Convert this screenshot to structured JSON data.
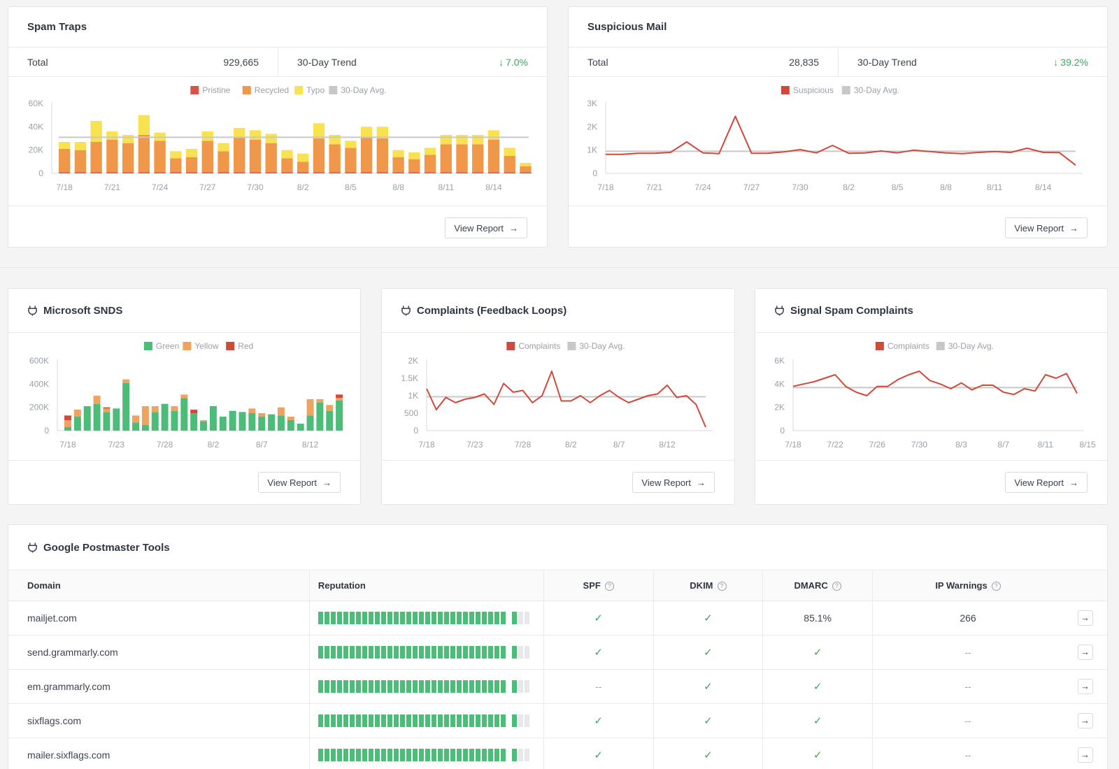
{
  "spam_traps": {
    "title": "Spam Traps",
    "total_label": "Total",
    "total_value": "929,665",
    "trend_label": "30-Day Trend",
    "trend_value": "7.0%",
    "trend_color": "#38a95b",
    "view_report": "View Report",
    "chart_data": {
      "type": "bar",
      "stacked": true,
      "legend": [
        "Pristine",
        "Recycled",
        "Typo",
        "30-Day Avg."
      ],
      "colors": [
        "#d95447",
        "#f0974a",
        "#f9e24f",
        "#c8c8c8"
      ],
      "x_ticks": [
        "7/18",
        "7/21",
        "7/24",
        "7/27",
        "7/30",
        "8/2",
        "8/5",
        "8/8",
        "8/11",
        "8/14"
      ],
      "y_ticks": [
        "60K",
        "40K",
        "20K",
        "0"
      ],
      "ylim": [
        0,
        60000
      ],
      "avg": 31000,
      "series": [
        {
          "name": "Pristine",
          "values": [
            1000,
            1000,
            1000,
            1000,
            1000,
            1000,
            1000,
            1000,
            1000,
            1000,
            1000,
            1000,
            1000,
            1000,
            1000,
            1000,
            1000,
            1000,
            1000,
            1000,
            1000,
            1000,
            1000,
            1000,
            1000,
            1000,
            1000,
            1000,
            1000,
            1000
          ]
        },
        {
          "name": "Recycled",
          "values": [
            20000,
            19000,
            26000,
            28000,
            25000,
            32000,
            27000,
            12000,
            13000,
            27000,
            18000,
            30000,
            28000,
            25000,
            12000,
            9000,
            29000,
            24000,
            21000,
            30000,
            29000,
            13000,
            11000,
            15000,
            24000,
            24000,
            24000,
            28000,
            14000,
            5000
          ]
        },
        {
          "name": "Typo",
          "values": [
            6000,
            7000,
            18000,
            7000,
            7000,
            17000,
            7000,
            6000,
            7000,
            8000,
            7000,
            8000,
            8000,
            8000,
            7000,
            7000,
            13000,
            8000,
            6000,
            9000,
            10000,
            6000,
            6000,
            6000,
            8000,
            8000,
            8000,
            8000,
            7000,
            3000
          ]
        }
      ]
    }
  },
  "suspicious": {
    "title": "Suspicious Mail",
    "total_label": "Total",
    "total_value": "28,835",
    "trend_label": "30-Day Trend",
    "trend_value": "39.2%",
    "trend_color": "#38a95b",
    "view_report": "View Report",
    "chart_data": {
      "type": "line",
      "legend": [
        "Suspicious",
        "30-Day Avg."
      ],
      "colors": [
        "#d0493a",
        "#c8c8c8"
      ],
      "x_ticks": [
        "7/18",
        "7/21",
        "7/24",
        "7/27",
        "7/30",
        "8/2",
        "8/5",
        "8/8",
        "8/11",
        "8/14"
      ],
      "y_ticks": [
        "3K",
        "2K",
        "1K",
        "0"
      ],
      "ylim": [
        0,
        3000
      ],
      "avg": 950,
      "values": [
        820,
        820,
        860,
        860,
        900,
        1350,
        880,
        850,
        2450,
        860,
        860,
        920,
        1020,
        880,
        1200,
        860,
        880,
        960,
        880,
        1000,
        940,
        880,
        850,
        900,
        940,
        900,
        1080,
        900,
        890,
        350
      ]
    }
  },
  "snds": {
    "title": "Microsoft SNDS",
    "view_report": "View Report",
    "chart_data": {
      "type": "bar",
      "stacked": true,
      "legend": [
        "Green",
        "Yellow",
        "Red"
      ],
      "colors": [
        "#4cbd78",
        "#f0a35e",
        "#d0493a"
      ],
      "x_ticks": [
        "7/18",
        "7/23",
        "7/28",
        "8/2",
        "8/7",
        "8/12"
      ],
      "y_ticks": [
        "600K",
        "400K",
        "200K",
        "0"
      ],
      "ylim": [
        0,
        600000
      ],
      "series": [
        {
          "name": "Green",
          "values": [
            30000,
            120000,
            210000,
            230000,
            160000,
            190000,
            410000,
            70000,
            50000,
            160000,
            230000,
            170000,
            280000,
            150000,
            80000,
            210000,
            120000,
            170000,
            160000,
            150000,
            120000,
            140000,
            130000,
            90000,
            60000,
            130000,
            240000,
            170000,
            260000
          ]
        },
        {
          "name": "Yellow",
          "values": [
            60000,
            60000,
            0,
            70000,
            30000,
            0,
            30000,
            60000,
            160000,
            50000,
            0,
            40000,
            30000,
            0,
            10000,
            0,
            0,
            0,
            0,
            40000,
            30000,
            0,
            70000,
            30000,
            0,
            140000,
            30000,
            50000,
            20000
          ]
        },
        {
          "name": "Red",
          "values": [
            40000,
            0,
            0,
            0,
            10000,
            0,
            0,
            0,
            0,
            0,
            0,
            0,
            0,
            30000,
            0,
            0,
            0,
            0,
            0,
            0,
            0,
            0,
            0,
            0,
            0,
            0,
            0,
            0,
            30000
          ]
        }
      ]
    }
  },
  "complaints": {
    "title": "Complaints (Feedback Loops)",
    "view_report": "View Report",
    "chart_data": {
      "type": "line",
      "legend": [
        "Complaints",
        "30-Day Avg."
      ],
      "colors": [
        "#d0493a",
        "#c8c8c8"
      ],
      "x_ticks": [
        "7/18",
        "7/23",
        "7/28",
        "8/2",
        "8/7",
        "8/12"
      ],
      "y_ticks": [
        "2K",
        "1.5K",
        "1K",
        "500",
        "0"
      ],
      "ylim": [
        0,
        2000
      ],
      "avg": 970,
      "values": [
        1200,
        600,
        950,
        800,
        900,
        950,
        1050,
        750,
        1350,
        1100,
        1150,
        800,
        1000,
        1700,
        850,
        850,
        1000,
        800,
        1000,
        1150,
        950,
        800,
        900,
        1000,
        1050,
        1300,
        950,
        1000,
        750,
        100
      ]
    }
  },
  "signal_spam": {
    "title": "Signal Spam Complaints",
    "view_report": "View Report",
    "chart_data": {
      "type": "line",
      "legend": [
        "Complaints",
        "30-Day Avg."
      ],
      "colors": [
        "#d0493a",
        "#c8c8c8"
      ],
      "x_ticks": [
        "7/18",
        "7/22",
        "7/26",
        "7/30",
        "8/3",
        "8/7",
        "8/11",
        "8/15"
      ],
      "y_ticks": [
        "6K",
        "4K",
        "2K",
        "0"
      ],
      "ylim": [
        0,
        6000
      ],
      "avg": 3700,
      "values": [
        3800,
        4000,
        4200,
        4500,
        4800,
        3800,
        3300,
        3000,
        3800,
        3800,
        4400,
        4800,
        5100,
        4300,
        4000,
        3600,
        4100,
        3500,
        3900,
        3900,
        3300,
        3100,
        3600,
        3400,
        4800,
        4500,
        4900,
        3200
      ]
    }
  },
  "postmaster": {
    "title": "Google Postmaster Tools",
    "columns": {
      "domain": "Domain",
      "reputation": "Reputation",
      "spf": "SPF",
      "dkim": "DKIM",
      "dmarc": "DMARC",
      "ip_warnings": "IP Warnings"
    },
    "help_glyph": "?",
    "check_glyph": "✓",
    "rows": [
      {
        "domain": "mailjet.com",
        "reputation": 0.93,
        "spf": "✓",
        "dkim": "✓",
        "dmarc": "85.1%",
        "ip": "266"
      },
      {
        "domain": "send.grammarly.com",
        "reputation": 0.93,
        "spf": "✓",
        "dkim": "✓",
        "dmarc": "✓",
        "ip": "--"
      },
      {
        "domain": "em.grammarly.com",
        "reputation": 0.93,
        "spf": "--",
        "dkim": "✓",
        "dmarc": "✓",
        "ip": "--"
      },
      {
        "domain": "sixflags.com",
        "reputation": 0.93,
        "spf": "✓",
        "dkim": "✓",
        "dmarc": "✓",
        "ip": "--"
      },
      {
        "domain": "mailer.sixflags.com",
        "reputation": 0.93,
        "spf": "✓",
        "dkim": "✓",
        "dmarc": "✓",
        "ip": "--"
      }
    ]
  },
  "icons": {
    "plug": "plug-icon",
    "arrow": "arrow-right-icon",
    "trend_down": "arrow-down-icon"
  }
}
